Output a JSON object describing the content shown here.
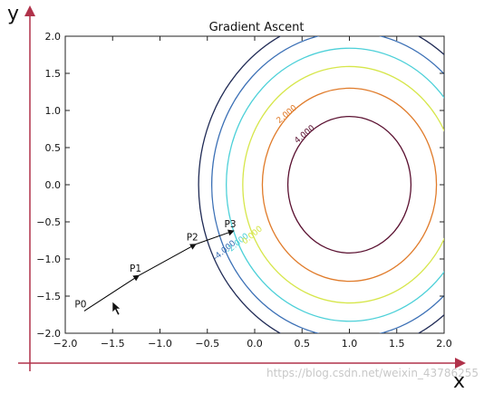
{
  "chart_data": {
    "type": "line",
    "title": "Gradient Ascent",
    "xlabel": "x",
    "ylabel": "y",
    "xlim": [
      -2.0,
      2.0
    ],
    "ylim": [
      -2.0,
      2.0
    ],
    "xticks": [
      "−2.0",
      "−1.5",
      "−1.0",
      "−0.5",
      "0.0",
      "0.5",
      "1.0",
      "1.5",
      "2.0"
    ],
    "yticks": [
      "−2.0",
      "−1.5",
      "−1.0",
      "−0.5",
      "0.0",
      "0.5",
      "1.0",
      "1.5",
      "2.0"
    ],
    "grid": false,
    "contours": [
      {
        "level": -6.0,
        "color": "#1f2a55",
        "label": ""
      },
      {
        "level": -4.0,
        "color": "#3a6fb5",
        "label": "-4.000"
      },
      {
        "level": -2.0,
        "color": "#4cd0d8",
        "label": "-2.000"
      },
      {
        "level": 0.0,
        "color": "#d6e64a",
        "label": "0.000"
      },
      {
        "level": 2.0,
        "color": "#e07b2a",
        "label": "2.000"
      },
      {
        "level": 4.0,
        "color": "#5a1030",
        "label": "4.000"
      }
    ],
    "path": {
      "points": [
        {
          "name": "P0",
          "x": -1.8,
          "y": -1.7
        },
        {
          "name": "P1",
          "x": -1.22,
          "y": -1.22
        },
        {
          "name": "P2",
          "x": -0.62,
          "y": -0.8
        },
        {
          "name": "P3",
          "x": -0.22,
          "y": -0.62
        }
      ],
      "color": "#000000"
    }
  },
  "watermark": "https://blog.csdn.net/weixin_43786255"
}
